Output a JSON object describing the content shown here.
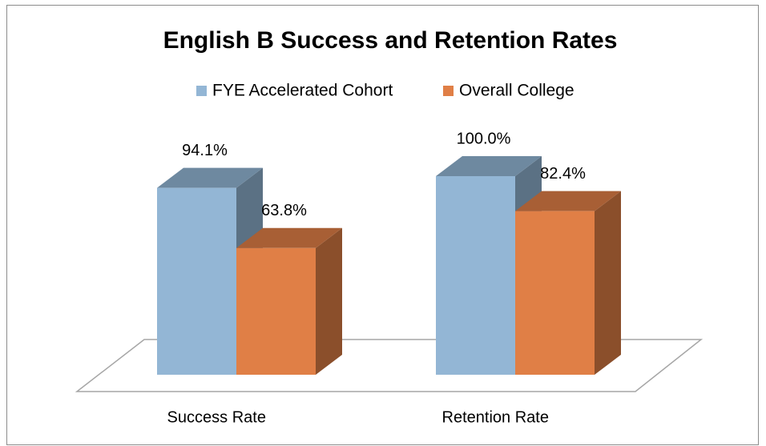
{
  "chart_data": {
    "type": "bar3d",
    "title": "English B Success and Retention Rates",
    "categories": [
      "Success Rate",
      "Retention Rate"
    ],
    "series": [
      {
        "name": "FYE Accelerated Cohort",
        "color": "#93b6d5",
        "values": [
          94.1,
          100.0
        ],
        "value_labels": [
          "94.1%",
          "100.0%"
        ]
      },
      {
        "name": "Overall College",
        "color": "#e07f46",
        "values": [
          63.8,
          82.4
        ],
        "value_labels": [
          "63.8%",
          "82.4%"
        ]
      }
    ],
    "legend": "top"
  }
}
